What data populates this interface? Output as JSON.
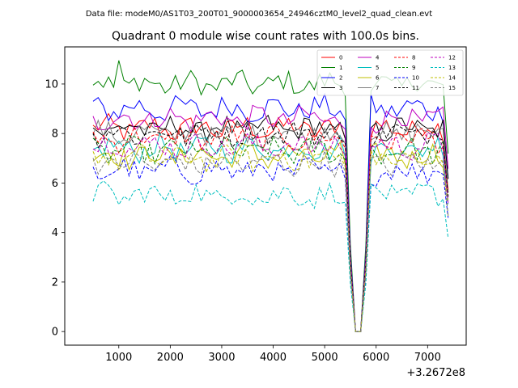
{
  "figure": {
    "suptitle": "Data file: modeM0/AS1T03_200T01_9000003654_24946cztM0_level2_quad_clean.evt"
  },
  "chart_data": {
    "type": "line",
    "title": "Quadrant 0 module wise count rates with 100.0s bins.",
    "xlabel": "",
    "ylabel": "",
    "x_offset_label": "+3.2672e8",
    "xlim": [
      -50,
      7750
    ],
    "ylim": [
      -0.55,
      11.5
    ],
    "xticks": [
      1000,
      2000,
      3000,
      4000,
      5000,
      6000,
      7000
    ],
    "yticks": [
      0,
      2,
      4,
      6,
      8,
      10
    ],
    "x_start": 500,
    "x_step": 100,
    "num_points": 70,
    "legend_location": "upper right",
    "series": [
      {
        "name": "0",
        "color": "#ff0000",
        "dash": "solid",
        "base": 8.2
      },
      {
        "name": "1",
        "color": "#008000",
        "dash": "solid",
        "base": 10.0
      },
      {
        "name": "2",
        "color": "#0000ff",
        "dash": "solid",
        "base": 9.0
      },
      {
        "name": "3",
        "color": "#000000",
        "dash": "solid",
        "base": 8.2
      },
      {
        "name": "4",
        "color": "#bf00bf",
        "dash": "solid",
        "base": 8.6
      },
      {
        "name": "5",
        "color": "#00bfbf",
        "dash": "solid",
        "base": 7.4
      },
      {
        "name": "6",
        "color": "#bfbf00",
        "dash": "solid",
        "base": 7.1
      },
      {
        "name": "7",
        "color": "#808080",
        "dash": "solid",
        "base": 8.0
      },
      {
        "name": "8",
        "color": "#ff0000",
        "dash": "dashed",
        "base": 7.8
      },
      {
        "name": "9",
        "color": "#008000",
        "dash": "dashed",
        "base": 7.3
      },
      {
        "name": "10",
        "color": "#0000ff",
        "dash": "dashed",
        "base": 6.5
      },
      {
        "name": "11",
        "color": "#000000",
        "dash": "dashed",
        "base": 8.0
      },
      {
        "name": "12",
        "color": "#bf00bf",
        "dash": "dashed",
        "base": 7.5
      },
      {
        "name": "13",
        "color": "#00bfbf",
        "dash": "dashed",
        "base": 5.5
      },
      {
        "name": "14",
        "color": "#bfbf00",
        "dash": "dashed",
        "base": 7.0
      },
      {
        "name": "15",
        "color": "#808080",
        "dash": "dashed",
        "base": 6.8
      }
    ]
  }
}
